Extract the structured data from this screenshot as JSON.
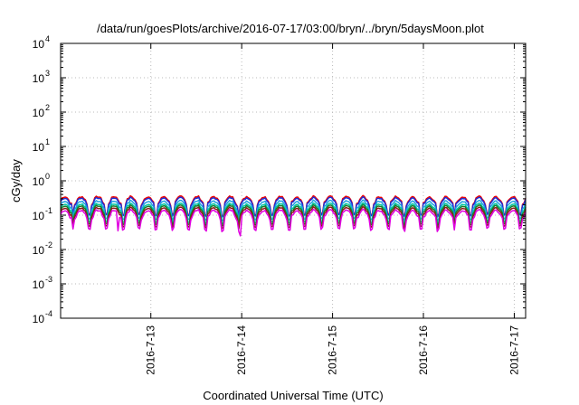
{
  "chart_data": {
    "type": "line",
    "title": "/data/run/goesPlots/archive/2016-07-17/03:00/bryn/../bryn/5daysMoon.plot",
    "xlabel": "Coordinated Universal Time (UTC)",
    "ylabel": "cGy/day",
    "yscale": "log",
    "ylim": [
      0.0001,
      10000
    ],
    "y_ticks": [
      {
        "base": "10",
        "exp": "-4",
        "value": 0.0001
      },
      {
        "base": "10",
        "exp": "-3",
        "value": 0.001
      },
      {
        "base": "10",
        "exp": "-2",
        "value": 0.01
      },
      {
        "base": "10",
        "exp": "-1",
        "value": 0.1
      },
      {
        "base": "10",
        "exp": "0",
        "value": 1
      },
      {
        "base": "10",
        "exp": "1",
        "value": 10
      },
      {
        "base": "10",
        "exp": "2",
        "value": 100
      },
      {
        "base": "10",
        "exp": "3",
        "value": 1000
      },
      {
        "base": "10",
        "exp": "4",
        "value": 10000
      }
    ],
    "xlim": [
      "2016-07-12 00:10",
      "2016-07-17 03:00"
    ],
    "x_tick_labels": [
      "2016-7-13",
      "2016-7-14",
      "2016-7-15",
      "2016-7-16",
      "2016-7-17"
    ],
    "x_tick_dates": [
      "2016-07-13",
      "2016-07-14",
      "2016-07-15",
      "2016-07-16",
      "2016-07-17"
    ],
    "grid": true,
    "series": [
      {
        "color": "#ee0000",
        "level": 0.27,
        "amp": 0.08
      },
      {
        "color": "#1a2fd8",
        "level": 0.25,
        "amp": 0.07
      },
      {
        "color": "#1e9fe0",
        "level": 0.2,
        "amp": 0.06
      },
      {
        "color": "#00c6a0",
        "level": 0.165,
        "amp": 0.05
      },
      {
        "color": "#1a7a2a",
        "level": 0.145,
        "amp": 0.045
      },
      {
        "color": "#8a1a1a",
        "level": 0.125,
        "amp": 0.04
      },
      {
        "color": "#e000e0",
        "level": 0.105,
        "amp": 0.035
      }
    ],
    "spikes": [
      {
        "x": "2016-07-12 15:30",
        "min": 0.035
      },
      {
        "x": "2016-07-13 23:30",
        "min": 0.025
      }
    ]
  }
}
